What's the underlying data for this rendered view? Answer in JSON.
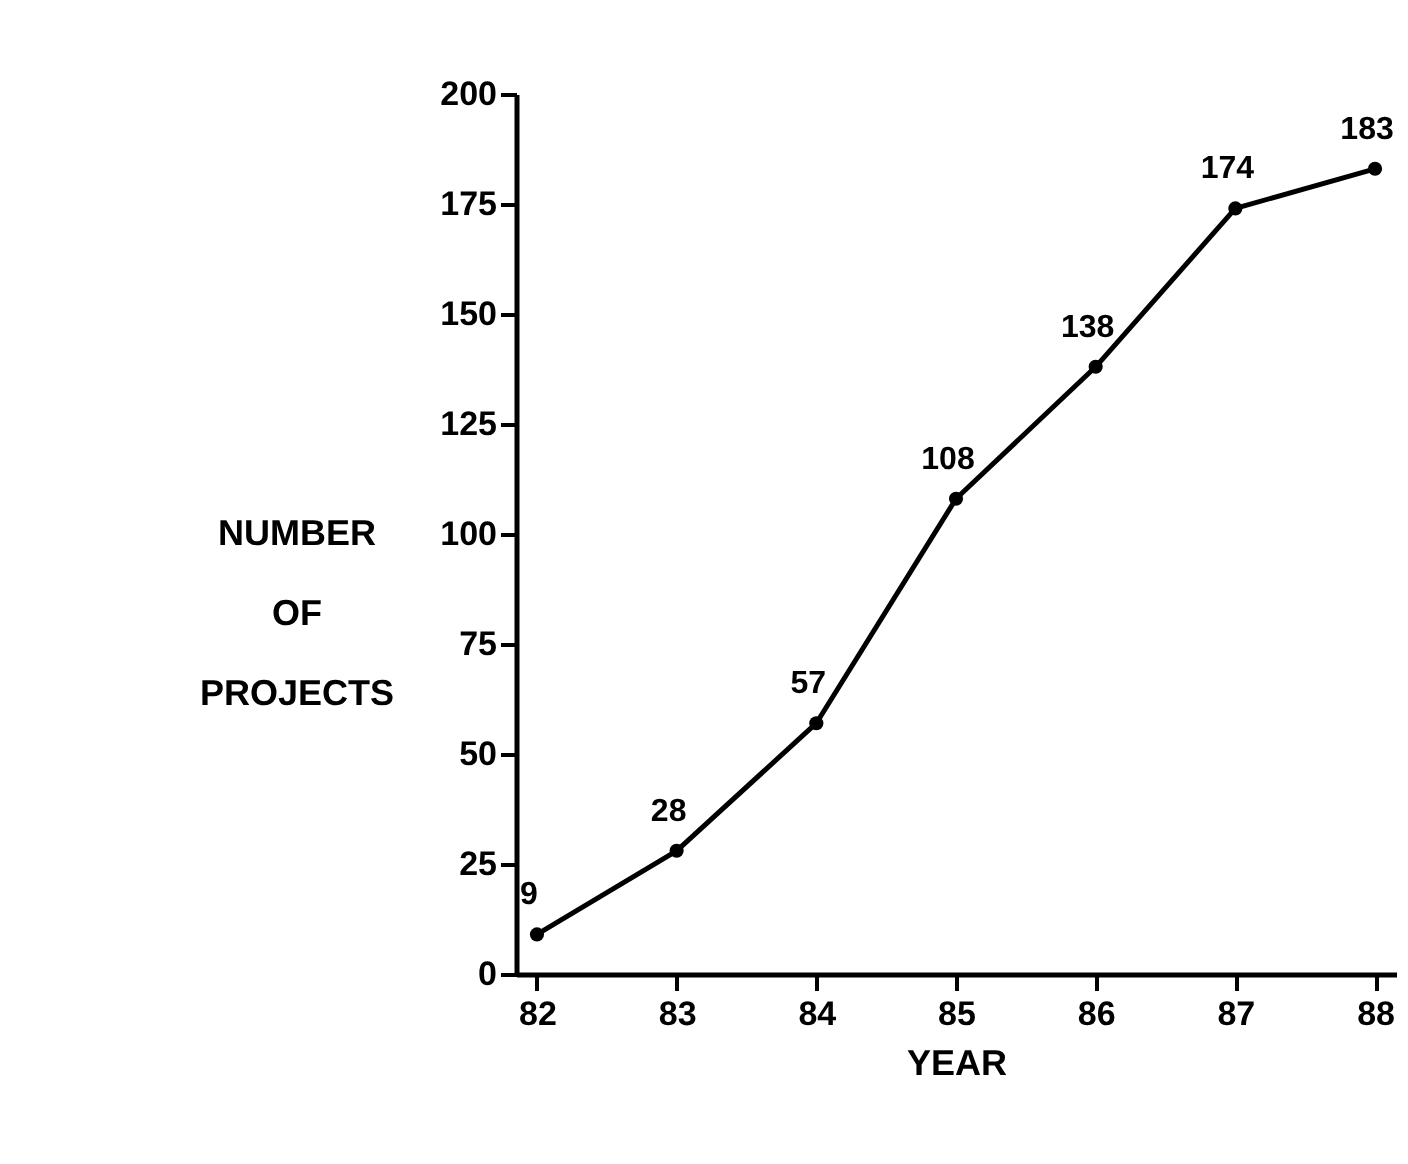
{
  "chart_data": {
    "type": "line",
    "xlabel": "YEAR",
    "ylabel": "NUMBER OF PROJECTS",
    "categories": [
      "82",
      "83",
      "84",
      "85",
      "86",
      "87",
      "88"
    ],
    "values": [
      9,
      28,
      57,
      108,
      138,
      174,
      183
    ],
    "color": "#000000",
    "ylim": [
      0,
      200
    ],
    "yticks": [
      0,
      25,
      50,
      75,
      100,
      125,
      150,
      175,
      200
    ],
    "grid": false,
    "marker": "circle",
    "line_style": "solid",
    "data_labels": true
  }
}
